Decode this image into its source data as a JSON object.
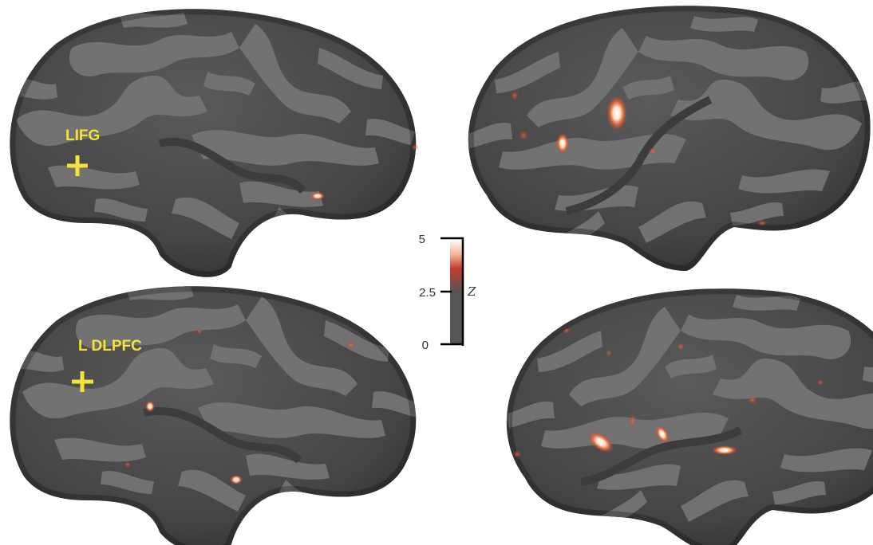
{
  "panels": {
    "top_left": {
      "view": "left lateral",
      "label": "LIFG"
    },
    "bottom_left": {
      "view": "left lateral",
      "label": "L DLPFC"
    },
    "top_right": {
      "view": "right lateral"
    },
    "bottom_right": {
      "view": "right lateral"
    }
  },
  "colorbar": {
    "title": "Z",
    "ticks": [
      "5",
      "2.5",
      "0"
    ],
    "min": 0,
    "max": 5,
    "colors": {
      "low": "#555555",
      "mid": "#d94a3a",
      "high": "#ffffff"
    }
  },
  "colors": {
    "sulci": "#4a4a4a",
    "gyri": "#747474",
    "marker": "#f2e23a",
    "activation_core": "#ffffff",
    "activation_edge": "#e8502a"
  }
}
